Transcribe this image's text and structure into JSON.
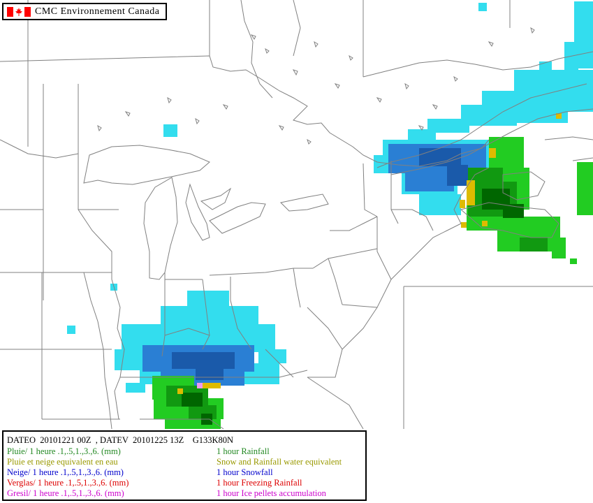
{
  "header": {
    "title": "CMC  Environnement  Canada",
    "flag_icon": "canada-flag-icon",
    "flag_color": "#ff0000"
  },
  "legend": {
    "header_line": "DATEO  20101221 00Z  , DATEV  20101225 13Z    G133K80N",
    "rows": [
      {
        "fr": "Pluie/ 1 heure .1,.5,1.,3.,6. (mm)",
        "en": "1 hour Rainfall",
        "color": "#228822"
      },
      {
        "fr": "Pluie et neige equivalent en eau",
        "en": "Snow and Rainfall water equivalent",
        "color": "#999900"
      },
      {
        "fr": "Neige/ 1 heure .1,.5,1.,3.,6. (mm)",
        "en": " 1 hour Snowfall",
        "color": "#0000cc"
      },
      {
        "fr": "Verglas/ 1 heure .1,.5,1.,3.,6. (mm)",
        "en": " 1 hour Freezing Rainfall",
        "color": "#dd0000"
      },
      {
        "fr": "Gresil/ 1 heure .1,.5,1.,3.,6. (mm)",
        "en": "1 hour Ice pellets accumulation",
        "color": "#cc00cc"
      }
    ]
  },
  "map_colors": {
    "background": "#ffffff",
    "boundaries": "#808080",
    "snow_light": "#33ddee",
    "snow_med": "#2a7fd4",
    "snow_heavy": "#1a5aaa",
    "rain_light": "#22cc22",
    "rain_med": "#119911",
    "rain_heavy": "#006600",
    "mixed": "#ddbb00",
    "ice": "#ee99ee"
  }
}
